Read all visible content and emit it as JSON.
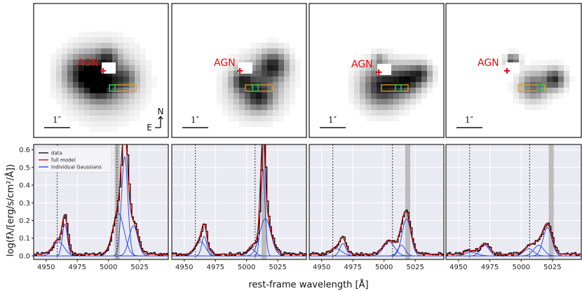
{
  "colors": {
    "data": "#000000",
    "model": "#cc0000",
    "gauss": "#1f3fd6",
    "agn": "#e01010",
    "slit": "#e0a020",
    "aperture": "#20c060",
    "band": "#b0b0b0"
  },
  "images": {
    "agn_label": "AGN",
    "scale_label": "1″",
    "north_label": "N",
    "east_label": "E"
  },
  "chart_data": {
    "type": "line",
    "ylabel": "log(fλ/[erg/s/cm²/Å])",
    "xlabel": "rest-frame wavelength [Å]",
    "xlim": [
      4940,
      5048
    ],
    "ylim": [
      -0.02,
      0.63
    ],
    "xticks": [
      4950,
      4975,
      5000,
      5025
    ],
    "yticks": [
      0.0,
      0.1,
      0.2,
      0.3,
      0.4,
      0.5,
      0.6
    ],
    "legend": [
      "data",
      "full model",
      "individual Gaussians"
    ],
    "legend_position": "top-left",
    "reference_lines": [
      4958.9,
      5006.8
    ],
    "panels": [
      {
        "band": [
          5005,
          5009
        ],
        "continuum": 0.01,
        "gaussians": [
          {
            "mu": 4960,
            "amp": 0.08,
            "sigma": 4.5
          },
          {
            "mu": 4965,
            "amp": 0.18,
            "sigma": 2.0
          },
          {
            "mu": 5008,
            "amp": 0.24,
            "sigma": 4.5
          },
          {
            "mu": 5013,
            "amp": 0.56,
            "sigma": 2.5
          },
          {
            "mu": 5020,
            "amp": 0.17,
            "sigma": 3.5
          }
        ]
      },
      {
        "band": [
          5012,
          5016
        ],
        "continuum": 0.01,
        "gaussians": [
          {
            "mu": 4963,
            "amp": 0.08,
            "sigma": 4.0
          },
          {
            "mu": 4966,
            "amp": 0.11,
            "sigma": 2.0
          },
          {
            "mu": 5004,
            "amp": 0.04,
            "sigma": 3.0
          },
          {
            "mu": 5013,
            "amp": 0.49,
            "sigma": 1.8
          },
          {
            "mu": 5015,
            "amp": 0.21,
            "sigma": 4.5
          }
        ]
      },
      {
        "band": [
          5017,
          5021
        ],
        "continuum": 0.01,
        "gaussians": [
          {
            "mu": 4962,
            "amp": 0.04,
            "sigma": 4.5
          },
          {
            "mu": 4967,
            "amp": 0.07,
            "sigma": 2.5
          },
          {
            "mu": 5004,
            "amp": 0.08,
            "sigma": 4.5
          },
          {
            "mu": 5014,
            "amp": 0.06,
            "sigma": 3.0
          },
          {
            "mu": 5018,
            "amp": 0.21,
            "sigma": 3.5
          }
        ]
      },
      {
        "band": [
          5022,
          5026
        ],
        "continuum": 0.01,
        "gaussians": [
          {
            "mu": 4960,
            "amp": 0.02,
            "sigma": 5.0
          },
          {
            "mu": 4971,
            "amp": 0.06,
            "sigma": 3.5
          },
          {
            "mu": 5006,
            "amp": 0.04,
            "sigma": 4.0
          },
          {
            "mu": 5014,
            "amp": 0.06,
            "sigma": 4.0
          },
          {
            "mu": 5021,
            "amp": 0.16,
            "sigma": 3.5
          }
        ]
      }
    ]
  }
}
